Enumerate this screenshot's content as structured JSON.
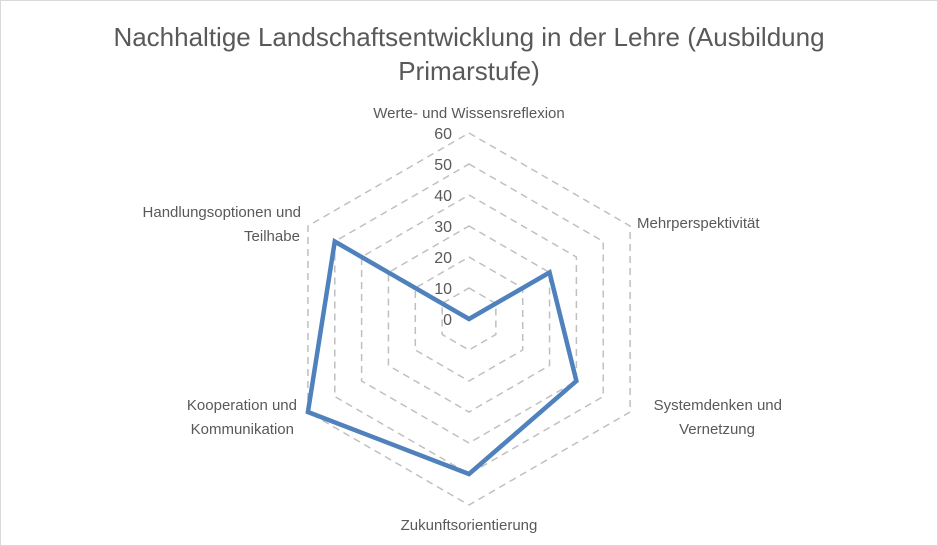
{
  "chart_data": {
    "type": "radar",
    "title_line1": "Nachhaltige Landschaftsentwicklung in der Lehre (Ausbildung",
    "title_line2": "Primarstufe)",
    "categories": [
      [
        "Werte- und Wissensreflexion"
      ],
      [
        "Mehrperspektivität"
      ],
      [
        "Systemdenken und",
        "Vernetzung"
      ],
      [
        "Zukunftsorientierung"
      ],
      [
        "Kooperation und",
        "Kommunikation"
      ],
      [
        "Handlungsoptionen und",
        "Teilhabe"
      ]
    ],
    "series": [
      {
        "name": "Ausbildung Primarstufe",
        "values": [
          0,
          30,
          40,
          50,
          60,
          50
        ],
        "color": "#4f81bd"
      }
    ],
    "rticks": [
      "0",
      "10",
      "20",
      "30",
      "40",
      "50",
      "60"
    ],
    "rlim": [
      0,
      60
    ],
    "grid": true,
    "grid_color": "#bfbfbf"
  }
}
